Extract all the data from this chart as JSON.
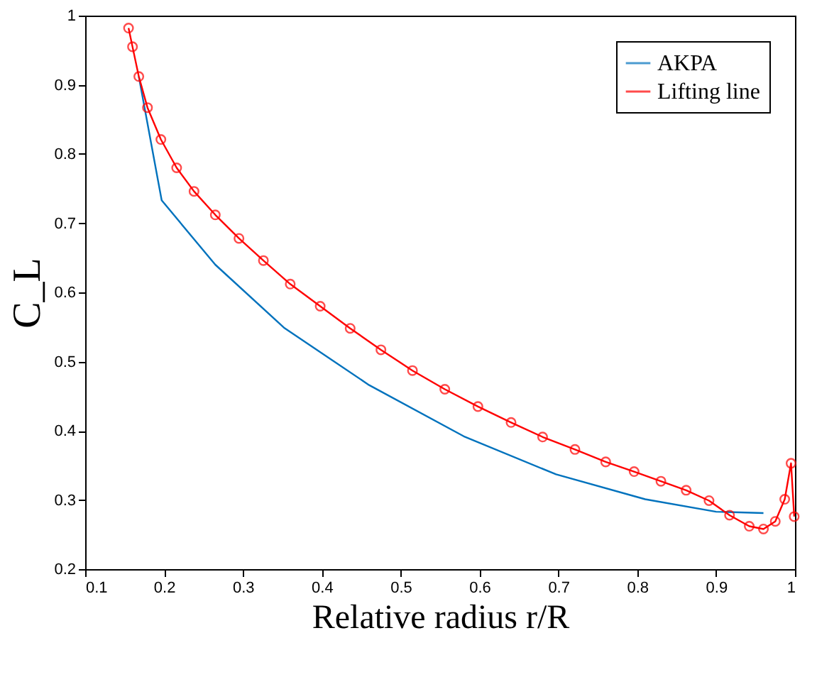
{
  "chart_data": {
    "type": "line",
    "xlabel": "Relative radius r/R",
    "ylabel": "C_L",
    "xlim": [
      0.1,
      1
    ],
    "xticks": [
      0.1,
      0.2,
      0.3,
      0.4,
      0.5,
      0.6,
      0.7,
      0.8,
      0.9,
      1
    ],
    "ylim": [
      0.2,
      1
    ],
    "yticks": [
      0.2,
      0.3,
      0.4,
      0.5,
      0.6,
      0.7,
      0.8,
      0.9,
      1
    ],
    "grid": false,
    "legend": "top right",
    "line_style": "solid",
    "series": [
      {
        "name": "AKPA",
        "color": "#0072bd",
        "marker": "none",
        "x": [
          0.168,
          0.197,
          0.265,
          0.352,
          0.46,
          0.58,
          0.697,
          0.81,
          0.9,
          0.96
        ],
        "values": [
          0.912,
          0.733,
          0.64,
          0.549,
          0.466,
          0.392,
          0.337,
          0.301,
          0.283,
          0.281
        ]
      },
      {
        "name": "Lifting line",
        "color": "#ff0000",
        "marker": "circle",
        "x": [
          0.155,
          0.16,
          0.168,
          0.179,
          0.196,
          0.216,
          0.238,
          0.265,
          0.295,
          0.326,
          0.36,
          0.398,
          0.436,
          0.475,
          0.515,
          0.556,
          0.598,
          0.64,
          0.68,
          0.721,
          0.76,
          0.796,
          0.83,
          0.862,
          0.891,
          0.917,
          0.942,
          0.96,
          0.975,
          0.987,
          0.995,
          0.999
        ],
        "values": [
          0.982,
          0.955,
          0.912,
          0.867,
          0.821,
          0.78,
          0.746,
          0.712,
          0.678,
          0.646,
          0.612,
          0.58,
          0.548,
          0.517,
          0.487,
          0.46,
          0.435,
          0.412,
          0.391,
          0.373,
          0.355,
          0.341,
          0.327,
          0.314,
          0.299,
          0.278,
          0.262,
          0.258,
          0.269,
          0.301,
          0.353,
          0.276
        ]
      }
    ]
  }
}
